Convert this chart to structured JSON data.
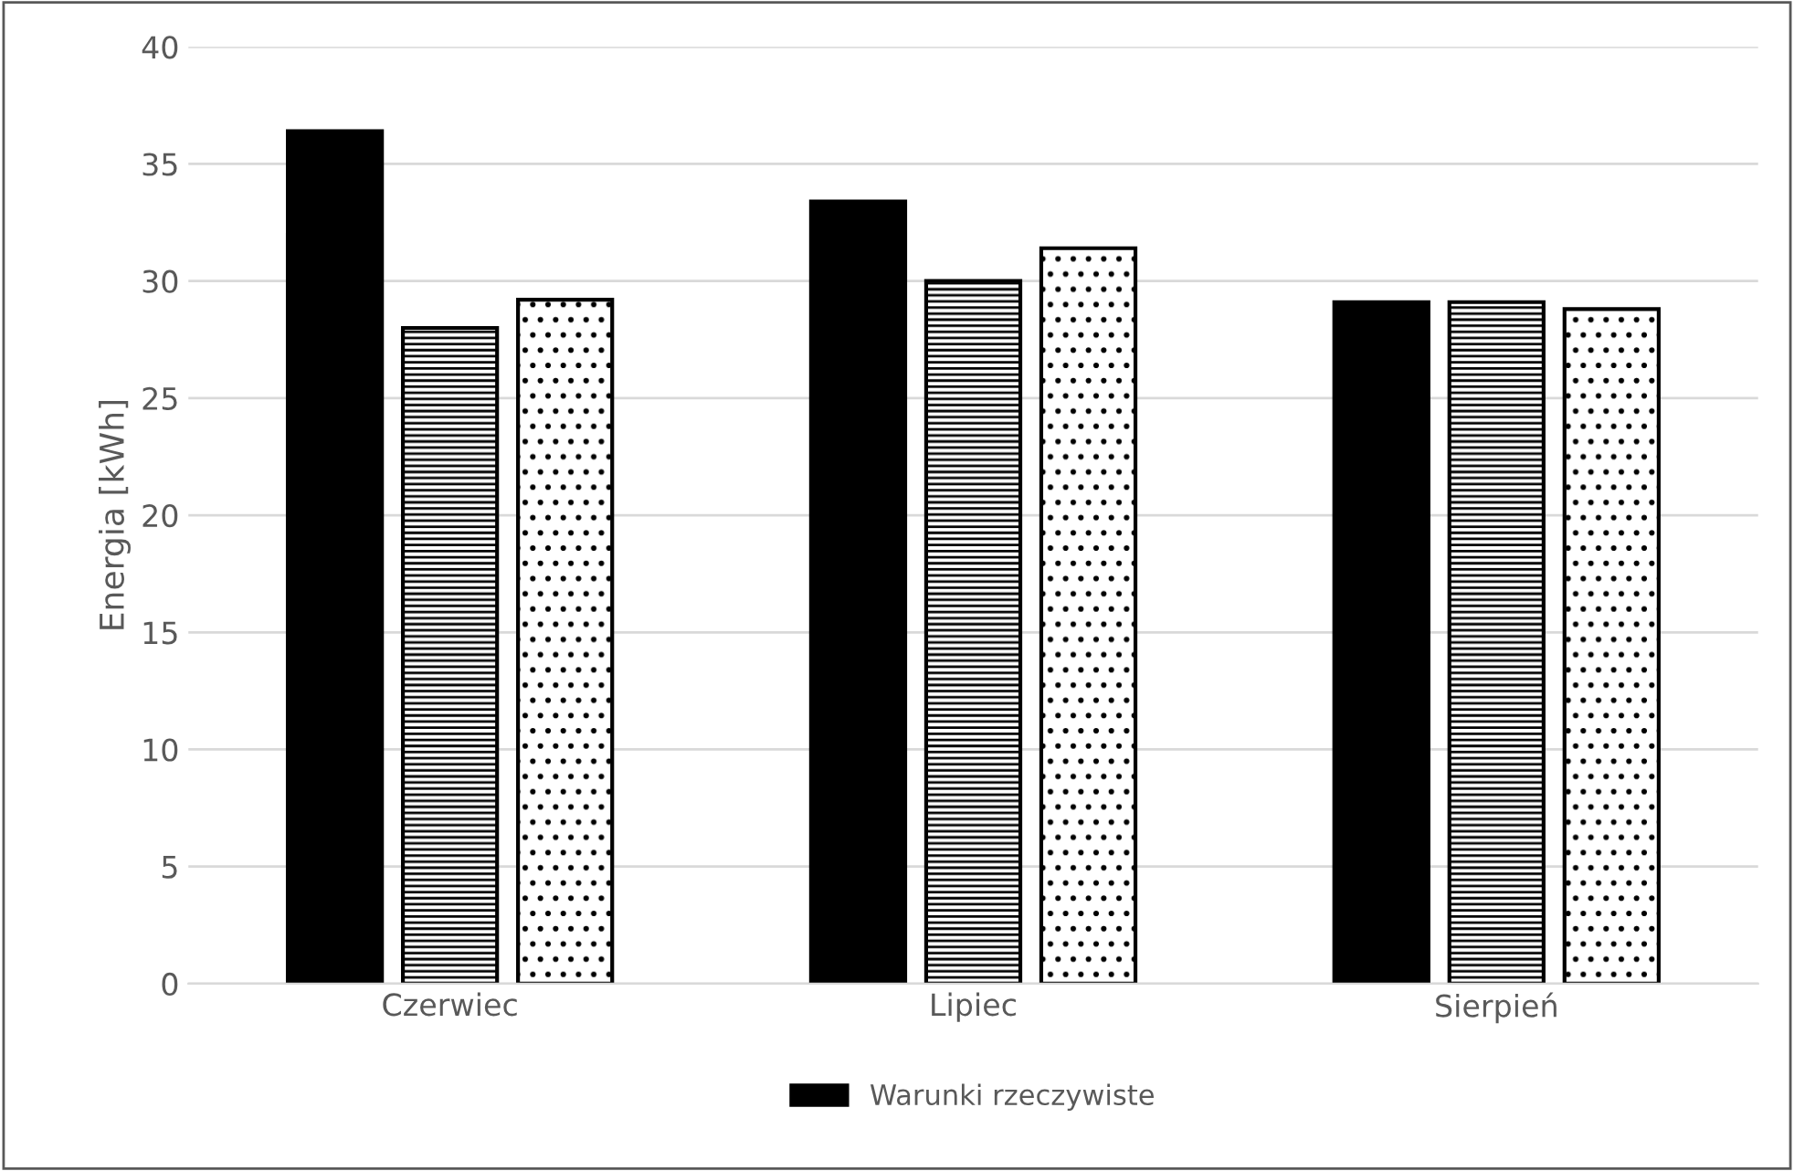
{
  "chart_data": {
    "type": "bar",
    "ylabel": "Energia [kWh]",
    "categories": [
      "Czerwiec",
      "Lipiec",
      "Sierpień"
    ],
    "series": [
      {
        "name": "Warunki rzeczywiste",
        "color": "#000000",
        "values": [
          36.4,
          33.4,
          29.1
        ]
      },
      {
        "color": "#000000",
        "values": [
          28.0,
          30.0,
          29.1
        ]
      },
      {
        "color": "#000000",
        "values": [
          29.2,
          31.4,
          28.8
        ]
      }
    ],
    "ylim": [
      0,
      40
    ],
    "yticks": [
      0,
      5,
      10,
      15,
      20,
      25,
      30,
      35,
      40
    ],
    "grid": "y",
    "legend": "bottom"
  }
}
